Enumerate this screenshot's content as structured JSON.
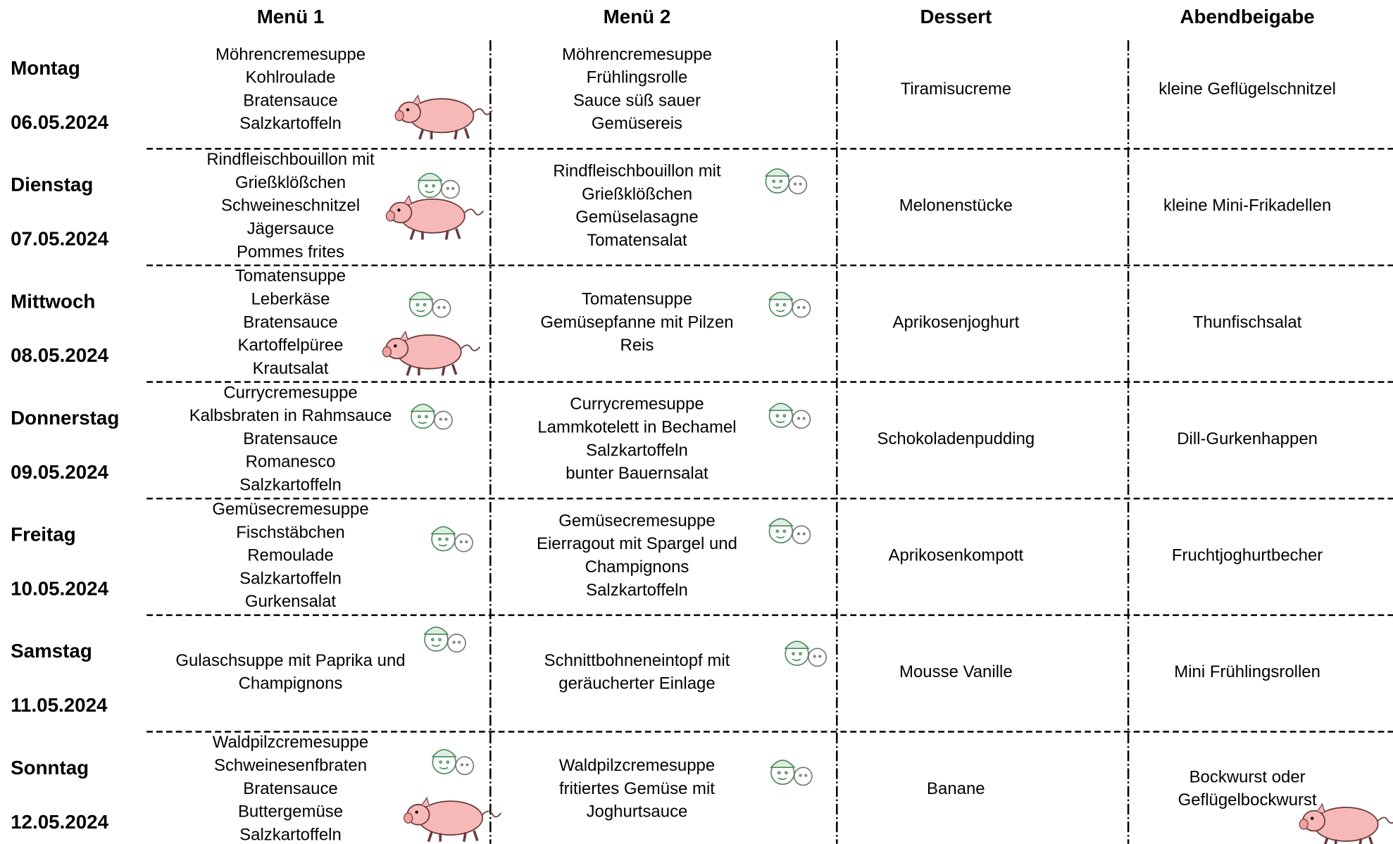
{
  "header": {
    "columns": [
      "Menü 1",
      "Menü 2",
      "Dessert",
      "Abendbeigabe"
    ]
  },
  "rows": [
    {
      "day": "Montag",
      "date": "06.05.2024",
      "menu1": [
        "Möhrencremesuppe",
        "Kohlroulade",
        "Bratensauce",
        "Salzkartoffeln"
      ],
      "menu2": [
        "Möhrencremesuppe",
        "Frühlingsrolle",
        "Sauce süß sauer",
        "Gemüsereis"
      ],
      "dessert": "Tiramisucreme",
      "evening": [
        "kleine Geflügelschnitzel"
      ]
    },
    {
      "day": "Dienstag",
      "date": "07.05.2024",
      "menu1": [
        "Rindfleischbouillon mit",
        "Grießklößchen",
        "Schweineschnitzel",
        "Jägersauce",
        "Pommes frites"
      ],
      "menu2": [
        "Rindfleischbouillon mit",
        "Grießklößchen",
        "Gemüselasagne",
        "Tomatensalat"
      ],
      "dessert": "Melonenstücke",
      "evening": [
        "kleine Mini-Frikadellen"
      ]
    },
    {
      "day": "Mittwoch",
      "date": "08.05.2024",
      "menu1": [
        "Tomatensuppe",
        "Leberkäse",
        "Bratensauce",
        "Kartoffelpüree",
        "Krautsalat"
      ],
      "menu2": [
        "Tomatensuppe",
        "Gemüsepfanne mit Pilzen",
        "Reis"
      ],
      "dessert": "Aprikosenjoghurt",
      "evening": [
        "Thunfischsalat"
      ]
    },
    {
      "day": "Donnerstag",
      "date": "09.05.2024",
      "menu1": [
        "Currycremesuppe",
        "Kalbsbraten in Rahmsauce",
        "Bratensauce",
        "Romanesco",
        "Salzkartoffeln"
      ],
      "menu2": [
        "Currycremesuppe",
        "Lammkotelett in Bechamel",
        "Salzkartoffeln",
        "bunter Bauernsalat"
      ],
      "dessert": "Schokoladenpudding",
      "evening": [
        "Dill-Gurkenhappen"
      ]
    },
    {
      "day": "Freitag",
      "date": "10.05.2024",
      "menu1": [
        "Gemüsecremesuppe",
        "Fischstäbchen",
        "Remoulade",
        "Salzkartoffeln",
        "Gurkensalat"
      ],
      "menu2": [
        "Gemüsecremesuppe",
        "Eierragout mit Spargel und",
        "Champignons",
        "Salzkartoffeln"
      ],
      "dessert": "Aprikosenkompott",
      "evening": [
        "Fruchtjoghurtbecher"
      ]
    },
    {
      "day": "Samstag",
      "date": "11.05.2024",
      "menu1": [
        "Gulaschsuppe mit Paprika und",
        "Champignons"
      ],
      "menu2": [
        "Schnittbohneneintopf mit",
        "geräucherter Einlage"
      ],
      "dessert": "Mousse Vanille",
      "evening": [
        "Mini Frühlingsrollen"
      ]
    },
    {
      "day": "Sonntag",
      "date": "12.05.2024",
      "menu1": [
        "Waldpilzcremesuppe",
        "Schweinesenfbraten",
        "Bratensauce",
        "Buttergemüse",
        "Salzkartoffeln"
      ],
      "menu2": [
        "Waldpilzcremesuppe",
        "fritiertes Gemüse mit",
        "Joghurtsauce"
      ],
      "dessert": "Banane",
      "evening": [
        "Bockwurst oder",
        "Geflügelbockwurst"
      ]
    }
  ]
}
